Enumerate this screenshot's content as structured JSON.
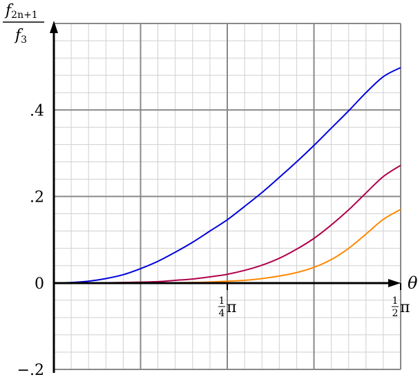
{
  "chart_data": {
    "type": "line",
    "ylabel": {
      "numerator_base": "f",
      "numerator_sub": "2n+1",
      "denominator_base": "f",
      "denominator_sub": "3"
    },
    "xlabel": "θ",
    "xlim": [
      0,
      1.5708
    ],
    "ylim": [
      -0.2,
      0.6
    ],
    "grid": true,
    "x_ticks": [
      {
        "value": 0.7854,
        "numerator": "1",
        "denominator": "4",
        "symbol": "π"
      },
      {
        "value": 1.5708,
        "numerator": "1",
        "denominator": "2",
        "symbol": "π"
      }
    ],
    "y_ticks": [
      {
        "value": -0.2,
        "label": "−.2"
      },
      {
        "value": 0,
        "label": "0"
      },
      {
        "value": 0.2,
        "label": ".2"
      },
      {
        "value": 0.4,
        "label": ".4"
      }
    ],
    "series": [
      {
        "color": "#0000dd",
        "x": [
          0,
          0.0785,
          0.1571,
          0.2356,
          0.3142,
          0.3927,
          0.4712,
          0.5498,
          0.6283,
          0.7069,
          0.7854,
          0.8639,
          0.9425,
          1.021,
          1.0996,
          1.1781,
          1.2566,
          1.3352,
          1.4137,
          1.4923,
          1.5708
        ],
        "values": [
          0,
          0.001,
          0.004,
          0.01,
          0.019,
          0.033,
          0.05,
          0.071,
          0.094,
          0.12,
          0.146,
          0.177,
          0.209,
          0.244,
          0.28,
          0.318,
          0.358,
          0.398,
          0.44,
          0.477,
          0.498
        ]
      },
      {
        "color": "#b0004b",
        "x": [
          0,
          0.1571,
          0.3142,
          0.4712,
          0.5498,
          0.6283,
          0.7069,
          0.7854,
          0.8639,
          0.9425,
          1.021,
          1.0996,
          1.1781,
          1.2566,
          1.3352,
          1.4137,
          1.4923,
          1.5708
        ],
        "values": [
          0,
          0.0,
          0.001,
          0.003,
          0.006,
          0.009,
          0.014,
          0.02,
          0.029,
          0.041,
          0.057,
          0.078,
          0.103,
          0.134,
          0.169,
          0.208,
          0.246,
          0.272
        ]
      },
      {
        "color": "#ff8800",
        "x": [
          0,
          0.3142,
          0.4712,
          0.6283,
          0.7069,
          0.7854,
          0.8639,
          0.9425,
          1.021,
          1.0996,
          1.1781,
          1.2566,
          1.3352,
          1.4137,
          1.4923,
          1.5708
        ],
        "values": [
          0,
          0.0,
          0.0,
          0.001,
          0.002,
          0.004,
          0.006,
          0.01,
          0.016,
          0.024,
          0.036,
          0.054,
          0.08,
          0.113,
          0.147,
          0.17
        ]
      }
    ]
  }
}
